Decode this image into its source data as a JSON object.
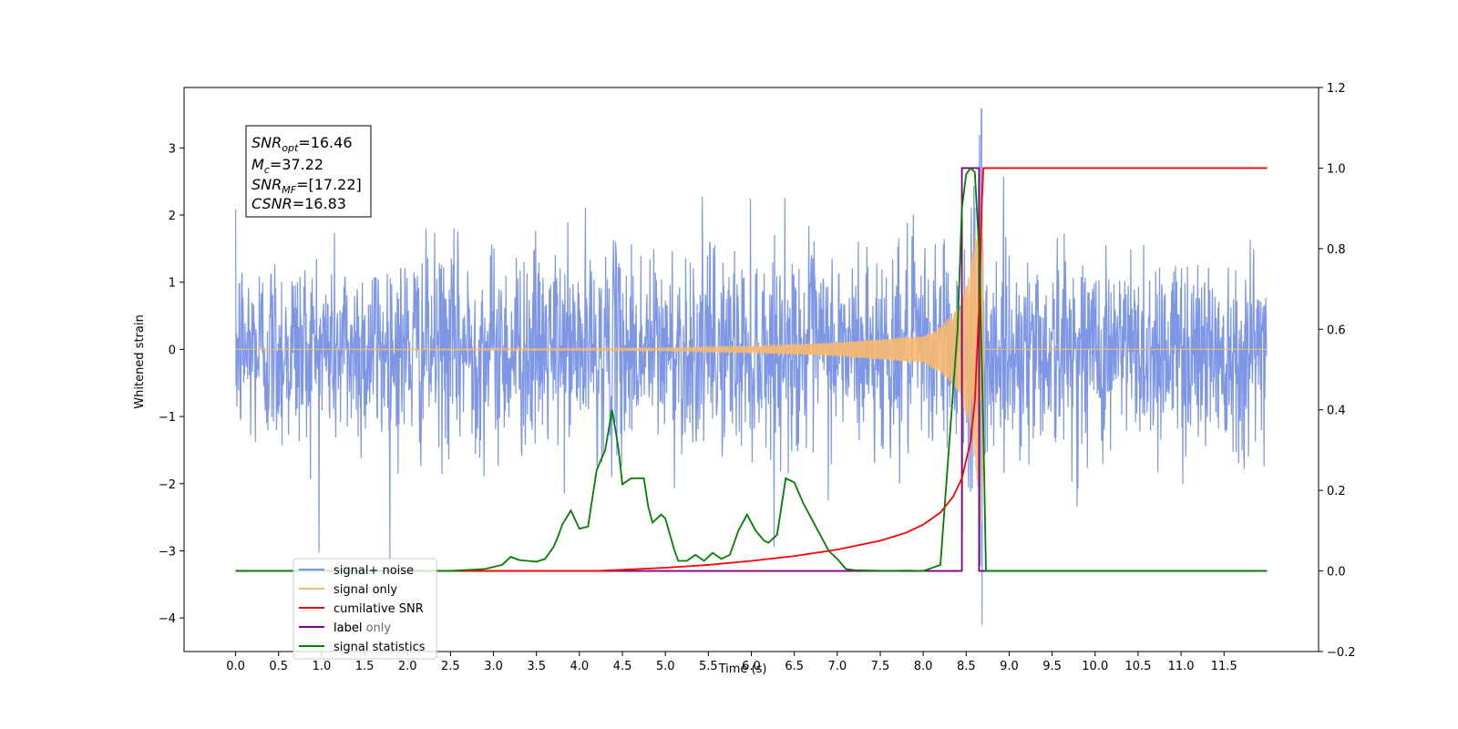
{
  "chart_data": {
    "type": "line",
    "xlabel": "Time (s)",
    "ylabel": "Whitened strain",
    "xlim": [
      -0.6,
      12.6
    ],
    "ylim": [
      -4.5,
      3.9
    ],
    "y2lim": [
      -0.2,
      1.2
    ],
    "x_ticks": [
      "0.0",
      "0.5",
      "1.0",
      "1.5",
      "2.0",
      "2.5",
      "3.0",
      "3.5",
      "4.0",
      "4.5",
      "5.0",
      "5.5",
      "6.0",
      "6.5",
      "7.0",
      "7.5",
      "8.0",
      "8.5",
      "9.0",
      "9.5",
      "10.0",
      "10.5",
      "11.0",
      "11.5"
    ],
    "y_ticks": [
      "3",
      "2",
      "1",
      "0",
      "−1",
      "−2",
      "−3",
      "−4"
    ],
    "y2_ticks": [
      "1.2",
      "1.0",
      "0.8",
      "0.6",
      "0.4",
      "0.2",
      "0.0",
      "−0.2"
    ],
    "annotation": {
      "snr_opt": {
        "base": "SNR",
        "sub": "opt",
        "value": "=16.46"
      },
      "mc": {
        "base": "M",
        "sub": "c",
        "value": "=37.22"
      },
      "snr_mf": {
        "base": "SNR",
        "sub": "MF",
        "value": "=[17.22]"
      },
      "csnr": {
        "base": "CSNR",
        "value": "=16.83"
      }
    },
    "legend": {
      "location": "lower-left",
      "entries": [
        "signal+ noise",
        "signal only",
        "cumilative SNR",
        "label",
        "signal statistics"
      ],
      "overlapped_labels": [
        "label only"
      ]
    },
    "series": [
      {
        "name": "signal+ noise",
        "axis": "left",
        "color": "#7690e5",
        "description_values": {
          "x_range": [
            0,
            12
          ],
          "amplitude_std": 0.75,
          "peak_at_8.68": 3.58,
          "min_at_8.68": -4.1
        }
      },
      {
        "name": "signal only",
        "axis": "left",
        "color": "#f7b870",
        "x": [
          0,
          5,
          6,
          7,
          7.5,
          8,
          8.2,
          8.4,
          8.55,
          8.65,
          8.68,
          8.72,
          12
        ],
        "envelope": [
          0,
          0.02,
          0.05,
          0.1,
          0.15,
          0.2,
          0.35,
          0.6,
          1.2,
          2.2,
          2.9,
          0,
          0
        ]
      },
      {
        "name": "cumilative SNR",
        "axis": "right",
        "color": "#ff0000",
        "x": [
          4.2,
          5.0,
          5.5,
          6.0,
          6.5,
          7.0,
          7.5,
          7.8,
          8.0,
          8.2,
          8.35,
          8.45,
          8.55,
          8.6,
          8.65,
          8.68,
          8.7,
          12.0
        ],
        "y": [
          0.0,
          0.008,
          0.015,
          0.025,
          0.037,
          0.053,
          0.075,
          0.095,
          0.115,
          0.145,
          0.185,
          0.23,
          0.32,
          0.42,
          0.65,
          0.9,
          1.0,
          1.0
        ]
      },
      {
        "name": "label",
        "axis": "right",
        "color": "#800080",
        "x": [
          0.0,
          8.45,
          8.45,
          8.65,
          8.65,
          12.0
        ],
        "y": [
          0.0,
          0.0,
          1.0,
          1.0,
          0.0,
          0.0
        ]
      },
      {
        "name": "signal statistics",
        "axis": "right",
        "color": "#007f00",
        "x": [
          0.0,
          2.5,
          2.9,
          3.1,
          3.2,
          3.3,
          3.4,
          3.5,
          3.6,
          3.7,
          3.75,
          3.8,
          3.9,
          4.0,
          4.1,
          4.2,
          4.3,
          4.38,
          4.45,
          4.5,
          4.6,
          4.7,
          4.75,
          4.8,
          4.85,
          4.95,
          5.0,
          5.1,
          5.15,
          5.25,
          5.35,
          5.45,
          5.55,
          5.65,
          5.75,
          5.85,
          5.95,
          6.05,
          6.15,
          6.2,
          6.3,
          6.4,
          6.5,
          6.6,
          6.7,
          6.8,
          6.9,
          7.0,
          7.1,
          7.2,
          7.4,
          7.6,
          7.8,
          8.0,
          8.2,
          8.4,
          8.45,
          8.5,
          8.55,
          8.6,
          8.65,
          8.7,
          8.73,
          8.75,
          12.0
        ],
        "y": [
          0.0,
          0.0,
          0.005,
          0.015,
          0.035,
          0.027,
          0.025,
          0.023,
          0.03,
          0.06,
          0.085,
          0.115,
          0.15,
          0.105,
          0.11,
          0.25,
          0.3,
          0.4,
          0.31,
          0.215,
          0.23,
          0.23,
          0.23,
          0.16,
          0.12,
          0.14,
          0.13,
          0.055,
          0.025,
          0.025,
          0.04,
          0.025,
          0.045,
          0.03,
          0.04,
          0.1,
          0.14,
          0.1,
          0.075,
          0.07,
          0.09,
          0.23,
          0.22,
          0.17,
          0.13,
          0.09,
          0.05,
          0.03,
          0.005,
          0.002,
          0.001,
          0.0,
          0.001,
          0.0,
          0.015,
          0.6,
          0.9,
          0.985,
          1.0,
          0.99,
          0.8,
          0.35,
          0.0,
          0.0,
          0.0
        ]
      }
    ]
  }
}
